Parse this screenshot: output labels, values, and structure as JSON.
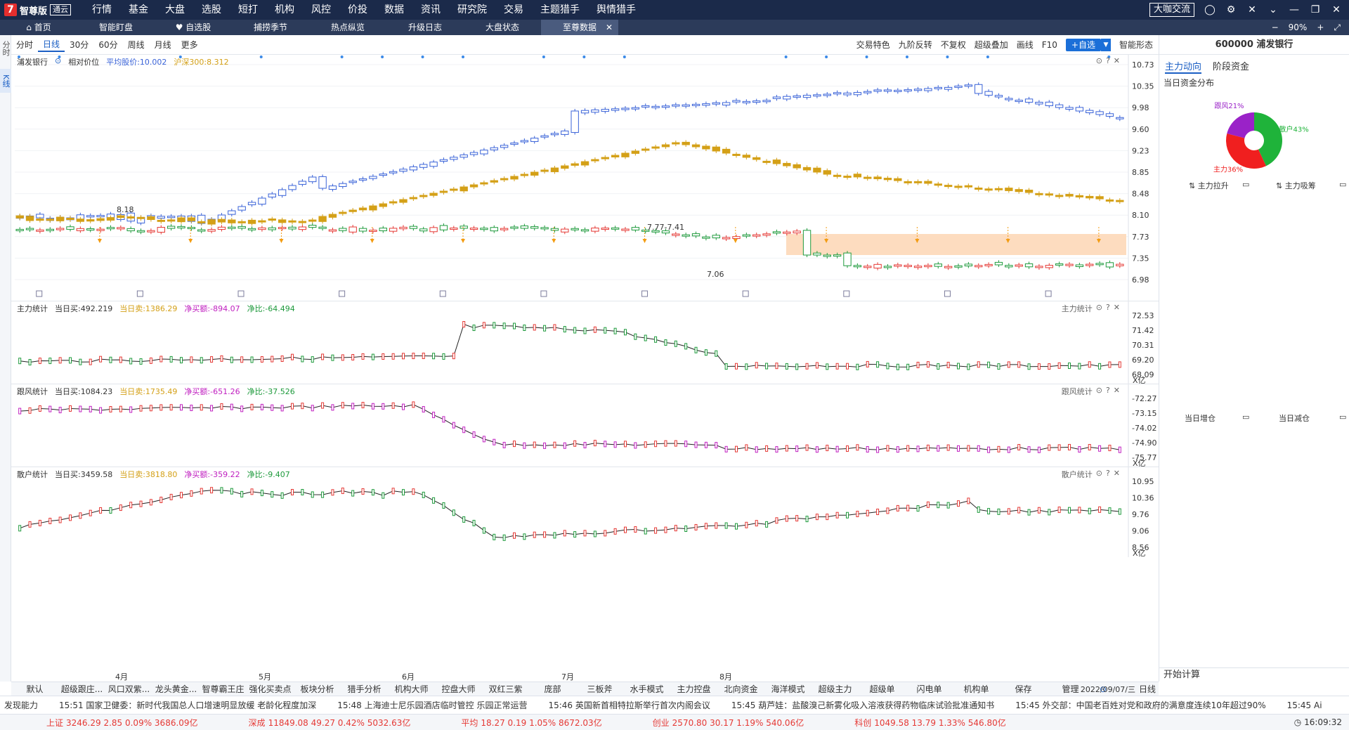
{
  "menubar": {
    "logo_text": "智尊版",
    "edition": "通云",
    "items": [
      "行情",
      "基金",
      "大盘",
      "选股",
      "短打",
      "机构",
      "风控",
      "价投",
      "数据",
      "资讯",
      "研究院",
      "交易",
      "主题猎手",
      "舆情猎手"
    ],
    "coffee": "大咖交流"
  },
  "tabs": [
    {
      "label": "首页"
    },
    {
      "label": "智能盯盘"
    },
    {
      "label": "自选股"
    },
    {
      "label": "捕捞季节"
    },
    {
      "label": "热点纵览"
    },
    {
      "label": "升级日志"
    },
    {
      "label": "大盘状态"
    },
    {
      "label": "至尊数据"
    }
  ],
  "zoom": {
    "minus": "−",
    "value": "90%",
    "plus": "+"
  },
  "leftstrip": [
    "分时",
    "K线"
  ],
  "toolbar": {
    "periods": [
      "分时",
      "日线",
      "30分",
      "60分",
      "周线",
      "月线",
      "更多"
    ],
    "active_period": "日线",
    "right": [
      "交易特色",
      "九阶反转",
      "不复权",
      "超级叠加",
      "画线",
      "F10"
    ],
    "add": "+自选",
    "smart": "智能形态"
  },
  "kline": {
    "name": "浦发银行",
    "mode": "相对价位",
    "avg_label": "平均股价:10.002",
    "hs300_label": "沪深300:8.312",
    "axis_ticks": [
      "10.73",
      "10.35",
      "9.98",
      "9.60",
      "9.23",
      "8.85",
      "8.48",
      "8.10",
      "7.73",
      "7.35",
      "6.98"
    ],
    "annot_high": "8.18",
    "annot_range": "7.77-7.41",
    "annot_low": "7.06",
    "colors": {
      "blue_series": "#3a63d8",
      "gold_series": "#d4a017",
      "up": "#e53935",
      "down": "#1e9a3c",
      "band": "#fddcbf"
    }
  },
  "panes": [
    {
      "title": "主力统计",
      "buy": "当日买:492.219",
      "sell": "当日卖:1386.29",
      "net": "净买额:-894.07",
      "ratio": "净比:-64.494",
      "ticks": [
        "72.53",
        "71.42",
        "70.31",
        "69.20",
        "68.09"
      ],
      "unit": "X亿"
    },
    {
      "title": "跟风统计",
      "buy": "当日买:1084.23",
      "sell": "当日卖:1735.49",
      "net": "净买额:-651.26",
      "ratio": "净比:-37.526",
      "ticks": [
        "-72.27",
        "-73.15",
        "-74.02",
        "-74.90",
        "-75.77"
      ],
      "unit": "X亿"
    },
    {
      "title": "散户统计",
      "buy": "当日买:3459.58",
      "sell": "当日卖:3818.80",
      "net": "净买额:-359.22",
      "ratio": "净比:-9.407",
      "ticks": [
        "10.95",
        "10.36",
        "9.76",
        "9.06",
        "8.56"
      ],
      "unit": "X亿"
    }
  ],
  "months": [
    "4月",
    "5月",
    "6月",
    "7月",
    "8月"
  ],
  "right_panel": {
    "code_name": "600000 浦发银行",
    "tabs": [
      "主力动向",
      "阶段资金"
    ],
    "dist_title": "当日资金分布",
    "pie": [
      {
        "label": "散户43%",
        "value": 43,
        "color": "#1fb33a"
      },
      {
        "label": "主力36%",
        "value": 36,
        "color": "#f01f1f"
      },
      {
        "label": "跟风21%",
        "value": 21,
        "color": "#9a22c8"
      }
    ],
    "sub1": "主力拉升",
    "sub2": "主力吸筹",
    "sub3": "当日增仓",
    "sub4": "当日减仓",
    "start_calc": "开始计算"
  },
  "strategies": [
    "默认",
    "超级跟庄...",
    "风口双紫...",
    "龙头黄金...",
    "智尊霸王庄",
    "强化买卖点",
    "板块分析",
    "猎手分析",
    "机构大师",
    "控盘大师",
    "双红三紫",
    "庞部",
    "三板斧",
    "水手模式",
    "主力控盘",
    "北向资金",
    "海洋模式",
    "超级主力",
    "超级单",
    "闪电单",
    "机构单",
    "保存",
    "管理"
  ],
  "date_info": "2022/09/07/三",
  "day_label": "日线",
  "news": [
    "发现能力",
    "15:51 国家卫健委：新时代我国总人口增速明显放缓 老龄化程度加深",
    "15:48 上海迪士尼乐园酒店临时管控 乐园正常运营",
    "15:46 英国新首相特拉斯举行首次内阁会议",
    "15:45 葫芦娃：盐酸溴己新雾化吸入溶液获得药物临床试验批准通知书",
    "15:45 外交部：中国老百姓对党和政府的满意度连续10年超过90%",
    "15:45 Ai"
  ],
  "indices": [
    {
      "name": "上证",
      "value": "3246.29  2.85  0.09%  3686.09亿"
    },
    {
      "name": "深成",
      "value": "11849.08  49.27  0.42%  5032.63亿"
    },
    {
      "name": "平均",
      "value": "18.27  0.19  1.05%  8672.03亿"
    },
    {
      "name": "创业",
      "value": "2570.80  30.17  1.19%  540.06亿"
    },
    {
      "name": "科创",
      "value": "1049.58  13.79  1.33%  546.80亿"
    }
  ],
  "clock": "16:09:32"
}
